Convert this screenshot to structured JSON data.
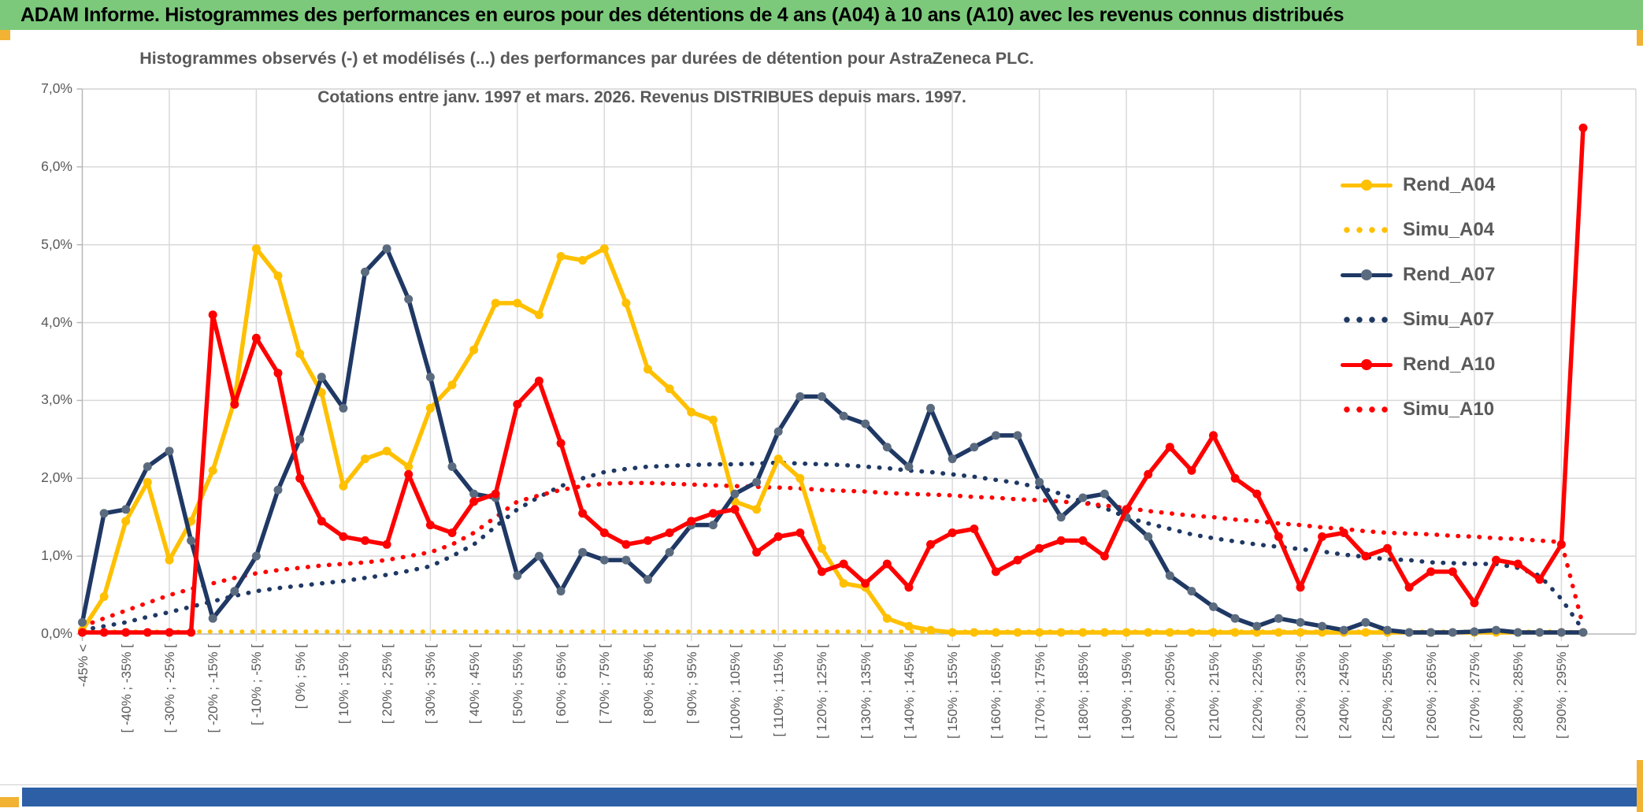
{
  "header": {
    "title": "ADAM Informe. Histogrammes des performances en euros pour des détentions de 4 ans (A04) à 10 ans (A10) avec les revenus connus distribués",
    "bg_color": "#7cc97c"
  },
  "accents": {
    "gold_color": "#f2b233",
    "bottom_bar_color": "#2d5fa6"
  },
  "chart_data": {
    "type": "line",
    "title_line1": "Histogrammes observés (-) et modélisés (...) des performances par durées de détention pour AstraZeneca PLC.",
    "title_line2": "Cotations entre janv. 1997 et mars. 2026. Revenus DISTRIBUES depuis mars. 1997.",
    "ylabel": "",
    "xlabel": "",
    "ylim_percent": [
      0.0,
      7.0
    ],
    "grid": true,
    "legend_position": "right-inside",
    "y_tick_labels": [
      "0,0%",
      "1,0%",
      "2,0%",
      "3,0%",
      "4,0%",
      "5,0%",
      "6,0%",
      "7,0%"
    ],
    "x_tick_labels_every_2nd_point": [
      "-45% <",
      "[ -40% ; -35% [",
      "[ -30% ; -25% [",
      "[ -20% ; -15% [",
      "[ -10% ; -5% [",
      "[ 0% ; 5% [",
      "[ 10% ; 15% [",
      "[ 20% ; 25% [",
      "[ 30% ; 35% [",
      "[ 40% ; 45% [",
      "[ 50% ; 55% [",
      "[ 60% ; 65% [",
      "[ 70% ; 75% [",
      "[ 80% ; 85% [",
      "[ 90% ; 95% [",
      "[ 100% ; 105% [",
      "[ 110% ; 115% [",
      "[ 120% ; 125% [",
      "[ 130% ; 135% [",
      "[ 140% ; 145% [",
      "[ 150% ; 155% [",
      "[ 160% ; 165% [",
      "[ 170% ; 175% [",
      "[ 180% ; 185% [",
      "[ 190% ; 195% [",
      "[ 200% ; 205% [",
      "[ 210% ; 215% [",
      "[ 220% ; 225% [",
      "[ 230% ; 235% [",
      "[ 240% ; 245% [",
      "[ 250% ; 255% [",
      "[ 260% ; 265% [",
      "[ 270% ; 275% [",
      "[ 280% ; 285% [",
      "[ 290% ; 295% ["
    ],
    "n_points": 70,
    "series": [
      {
        "name": "Rend_A04",
        "style": "solid",
        "color": "#FFC000",
        "marker_color": "#FFC000",
        "values": [
          0.05,
          0.48,
          1.45,
          1.95,
          0.95,
          1.45,
          2.1,
          3.0,
          4.95,
          4.6,
          3.6,
          3.1,
          1.9,
          2.25,
          2.35,
          2.15,
          2.9,
          3.2,
          3.65,
          4.25,
          4.25,
          4.1,
          4.85,
          4.8,
          4.95,
          4.25,
          3.4,
          3.15,
          2.85,
          2.75,
          1.7,
          1.6,
          2.25,
          2.0,
          1.1,
          0.65,
          0.6,
          0.2,
          0.1,
          0.05,
          0.02,
          0.02,
          0.02,
          0.02,
          0.02,
          0.02,
          0.02,
          0.02,
          0.02,
          0.02,
          0.02,
          0.02,
          0.02,
          0.02,
          0.02,
          0.02,
          0.02,
          0.02,
          0.02,
          0.02,
          0.02,
          0.02,
          0.02,
          0.02,
          0.02,
          0.02,
          0.02,
          0.02,
          0.02,
          0.02
        ]
      },
      {
        "name": "Simu_A04",
        "style": "dotted",
        "color": "#FFC000",
        "marker_color": "#FFC000",
        "values": [
          0.03,
          0.03,
          0.03,
          0.03,
          0.03,
          0.03,
          0.03,
          0.03,
          0.03,
          0.03,
          0.03,
          0.03,
          0.03,
          0.03,
          0.03,
          0.03,
          0.03,
          0.03,
          0.03,
          0.03,
          0.03,
          0.03,
          0.03,
          0.03,
          0.03,
          0.03,
          0.03,
          0.03,
          0.03,
          0.03,
          0.03,
          0.03,
          0.03,
          0.03,
          0.03,
          0.03,
          0.03,
          0.03,
          0.03,
          0.03,
          0.03,
          0.03,
          0.03,
          0.03,
          0.03,
          0.03,
          0.03,
          0.03,
          0.03,
          0.03,
          0.03,
          0.03,
          0.03,
          0.03,
          0.03,
          0.03,
          0.03,
          0.03,
          0.03,
          0.03,
          0.03,
          0.03,
          0.03,
          0.03,
          0.03,
          0.03,
          0.03,
          0.03,
          0.03,
          0.02
        ]
      },
      {
        "name": "Rend_A07",
        "style": "solid",
        "color": "#1F3864",
        "marker_color": "#5B6B7F",
        "values": [
          0.15,
          1.55,
          1.6,
          2.15,
          2.35,
          1.2,
          0.2,
          0.55,
          1.0,
          1.85,
          2.5,
          3.3,
          2.9,
          4.65,
          4.95,
          4.3,
          3.3,
          2.15,
          1.8,
          1.75,
          0.75,
          1.0,
          0.55,
          1.05,
          0.95,
          0.95,
          0.7,
          1.05,
          1.4,
          1.4,
          1.8,
          1.95,
          2.6,
          3.05,
          3.05,
          2.8,
          2.7,
          2.4,
          2.15,
          2.9,
          2.25,
          2.4,
          2.55,
          2.55,
          1.95,
          1.5,
          1.75,
          1.8,
          1.5,
          1.25,
          0.75,
          0.55,
          0.35,
          0.2,
          0.1,
          0.2,
          0.15,
          0.1,
          0.05,
          0.15,
          0.05,
          0.02,
          0.02,
          0.02,
          0.03,
          0.05,
          0.02,
          0.02,
          0.02,
          0.02
        ]
      },
      {
        "name": "Simu_A07",
        "style": "dotted",
        "color": "#1F3864",
        "marker_color": "#1F3864",
        "values": [
          0.05,
          0.1,
          0.15,
          0.22,
          0.28,
          0.35,
          0.42,
          0.49,
          0.55,
          0.59,
          0.62,
          0.65,
          0.68,
          0.72,
          0.76,
          0.81,
          0.87,
          1.0,
          1.15,
          1.38,
          1.6,
          1.76,
          1.9,
          2.0,
          2.08,
          2.12,
          2.15,
          2.16,
          2.17,
          2.18,
          2.18,
          2.19,
          2.2,
          2.19,
          2.18,
          2.17,
          2.15,
          2.13,
          2.1,
          2.08,
          2.05,
          2.02,
          1.98,
          1.94,
          1.88,
          1.8,
          1.7,
          1.62,
          1.5,
          1.42,
          1.35,
          1.28,
          1.23,
          1.19,
          1.15,
          1.12,
          1.09,
          1.06,
          1.02,
          0.99,
          0.96,
          0.95,
          0.92,
          0.91,
          0.9,
          0.9,
          0.85,
          0.75,
          0.45,
          0.05
        ]
      },
      {
        "name": "Rend_A10",
        "style": "solid",
        "color": "#FF0000",
        "marker_color": "#FF0000",
        "values": [
          0.02,
          0.02,
          0.02,
          0.02,
          0.02,
          0.02,
          4.1,
          2.95,
          3.8,
          3.35,
          2.0,
          1.45,
          1.25,
          1.2,
          1.15,
          2.05,
          1.4,
          1.3,
          1.7,
          1.8,
          2.95,
          3.25,
          2.45,
          1.55,
          1.3,
          1.15,
          1.2,
          1.3,
          1.45,
          1.55,
          1.6,
          1.05,
          1.25,
          1.3,
          0.8,
          0.9,
          0.65,
          0.9,
          0.6,
          1.15,
          1.3,
          1.35,
          0.8,
          0.95,
          1.1,
          1.2,
          1.2,
          1.0,
          1.6,
          2.05,
          2.4,
          2.1,
          2.55,
          2.0,
          1.8,
          1.25,
          0.6,
          1.25,
          1.3,
          1.0,
          1.1,
          0.6,
          0.8,
          0.8,
          0.4,
          0.95,
          0.9,
          0.7,
          1.15,
          6.5
        ]
      },
      {
        "name": "Simu_A10",
        "style": "dotted",
        "color": "#FF0000",
        "marker_color": "#FF0000",
        "values": [
          0.1,
          0.2,
          0.3,
          0.4,
          0.5,
          0.58,
          0.65,
          0.72,
          0.78,
          0.82,
          0.85,
          0.88,
          0.9,
          0.92,
          0.95,
          1.0,
          1.05,
          1.15,
          1.3,
          1.5,
          1.7,
          1.78,
          1.85,
          1.9,
          1.93,
          1.94,
          1.94,
          1.93,
          1.92,
          1.91,
          1.9,
          1.89,
          1.88,
          1.87,
          1.85,
          1.84,
          1.83,
          1.81,
          1.8,
          1.79,
          1.78,
          1.76,
          1.75,
          1.73,
          1.72,
          1.7,
          1.68,
          1.65,
          1.62,
          1.58,
          1.55,
          1.52,
          1.5,
          1.47,
          1.45,
          1.42,
          1.4,
          1.37,
          1.35,
          1.32,
          1.3,
          1.29,
          1.28,
          1.26,
          1.25,
          1.23,
          1.22,
          1.2,
          1.18,
          0.1
        ]
      }
    ],
    "legend_entries": [
      "Rend_A04",
      "Simu_A04",
      "Rend_A07",
      "Simu_A07",
      "Rend_A10",
      "Simu_A10"
    ],
    "colors": {
      "grid": "#d9d9d9",
      "axis": "#b7b7b7",
      "text": "#595959"
    }
  }
}
